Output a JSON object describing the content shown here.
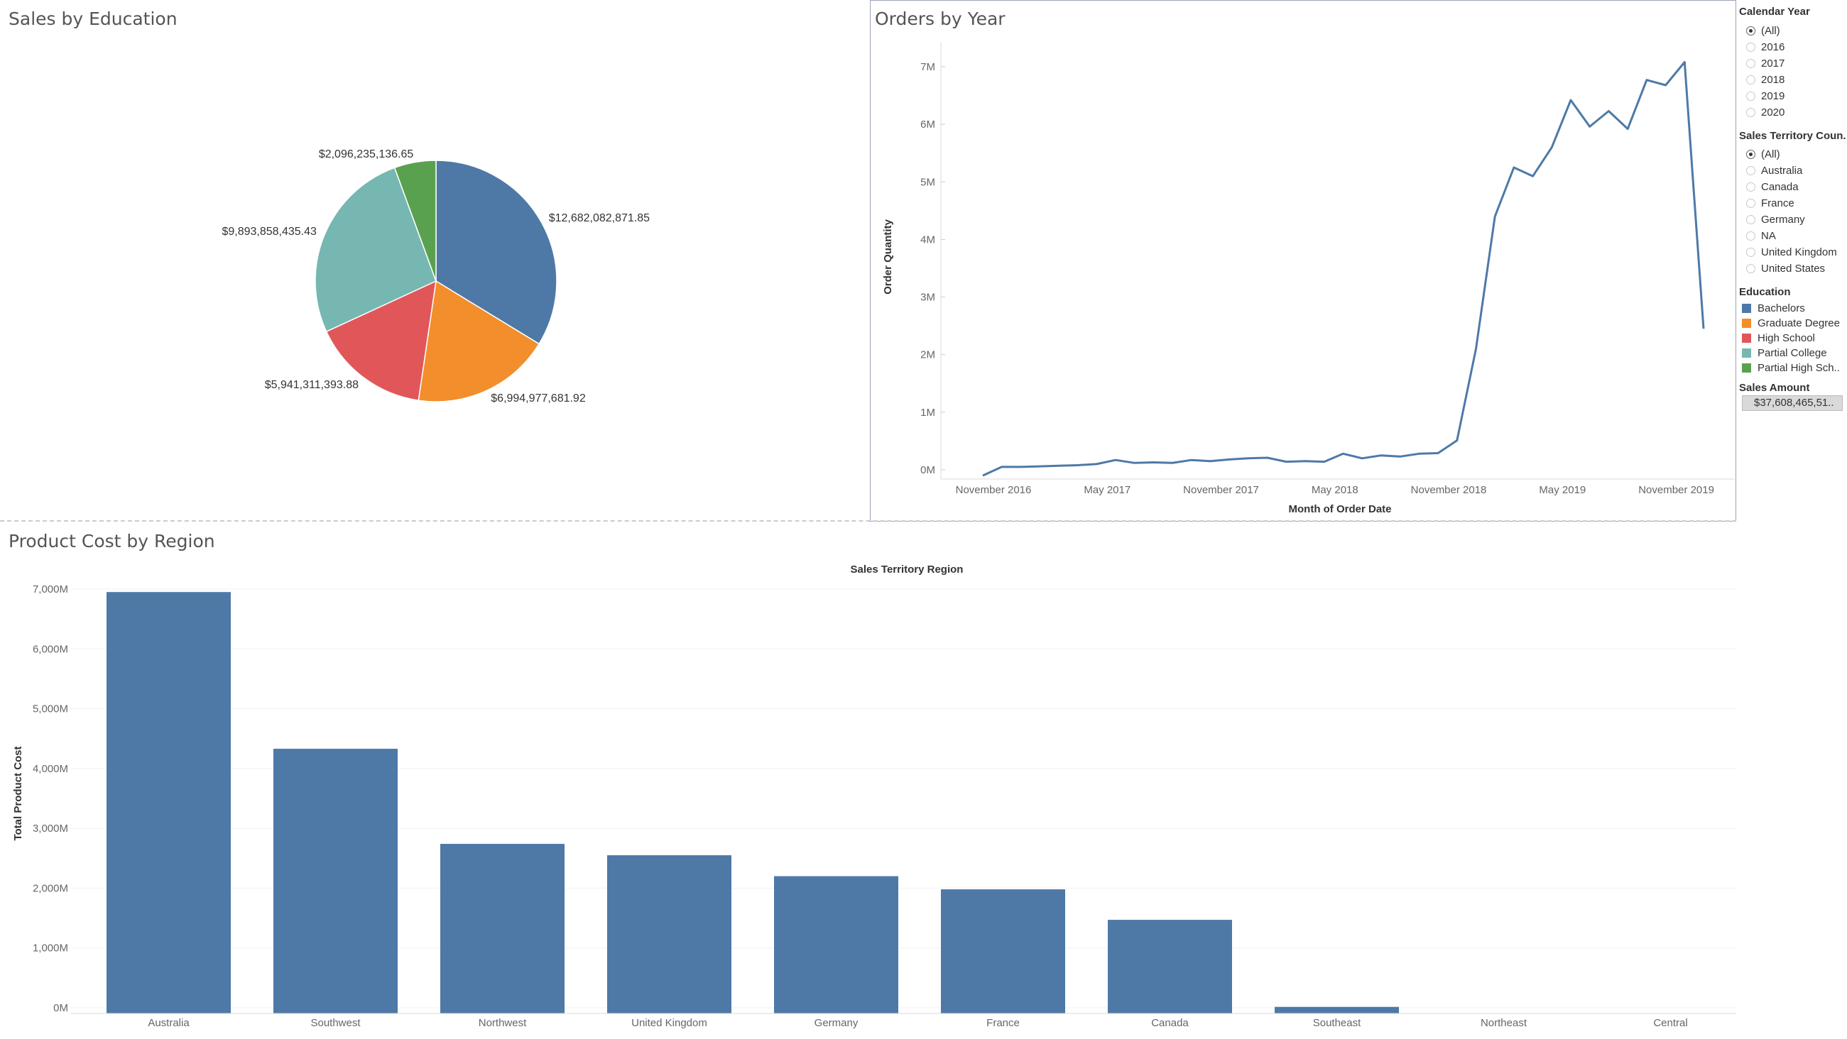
{
  "pie_panel": {
    "title": "Sales by Education"
  },
  "line_panel": {
    "title": "Orders by Year"
  },
  "bar_panel": {
    "title": "Product Cost by Region"
  },
  "filters": {
    "calendar_year": {
      "title": "Calendar Year",
      "options": [
        {
          "label": "(All)",
          "selected": true
        },
        {
          "label": "2016",
          "selected": false
        },
        {
          "label": "2017",
          "selected": false
        },
        {
          "label": "2018",
          "selected": false
        },
        {
          "label": "2019",
          "selected": false
        },
        {
          "label": "2020",
          "selected": false
        }
      ]
    },
    "territory_country": {
      "title": "Sales Territory Coun..",
      "options": [
        {
          "label": "(All)",
          "selected": true
        },
        {
          "label": "Australia",
          "selected": false
        },
        {
          "label": "Canada",
          "selected": false
        },
        {
          "label": "France",
          "selected": false
        },
        {
          "label": "Germany",
          "selected": false
        },
        {
          "label": "NA",
          "selected": false
        },
        {
          "label": "United Kingdom",
          "selected": false
        },
        {
          "label": "United States",
          "selected": false
        }
      ]
    },
    "education_legend": {
      "title": "Education",
      "items": [
        {
          "label": "Bachelors",
          "color": "#4e79a7"
        },
        {
          "label": "Graduate Degree",
          "color": "#f28e2b"
        },
        {
          "label": "High School",
          "color": "#e15759"
        },
        {
          "label": "Partial College",
          "color": "#76b7b2"
        },
        {
          "label": "Partial High Sch..",
          "color": "#59a14f"
        }
      ]
    },
    "sales_amount": {
      "title": "Sales Amount",
      "value": "$37,608,465,51.."
    }
  },
  "chart_data": [
    {
      "type": "pie",
      "title": "Sales by Education",
      "slices": [
        {
          "category": "Bachelors",
          "value": 12682082871.85,
          "label": "$12,682,082,871.85",
          "color": "#4e79a7"
        },
        {
          "category": "Graduate Degree",
          "value": 6994977681.92,
          "label": "$6,994,977,681.92",
          "color": "#f28e2b"
        },
        {
          "category": "High School",
          "value": 5941311393.88,
          "label": "$5,941,311,393.88",
          "color": "#e15759"
        },
        {
          "category": "Partial College",
          "value": 9893858435.43,
          "label": "$9,893,858,435.43",
          "color": "#76b7b2"
        },
        {
          "category": "Partial High School",
          "value": 2096235136.65,
          "label": "$2,096,235,136.65",
          "color": "#59a14f"
        }
      ]
    },
    {
      "type": "line",
      "title": "Orders by Year",
      "xlabel": "Month of Order Date",
      "ylabel": "Order Quantity",
      "x": [
        "2016-11",
        "2016-12",
        "2017-01",
        "2017-02",
        "2017-03",
        "2017-04",
        "2017-05",
        "2017-06",
        "2017-07",
        "2017-08",
        "2017-09",
        "2017-10",
        "2017-11",
        "2017-12",
        "2018-01",
        "2018-02",
        "2018-03",
        "2018-04",
        "2018-05",
        "2018-06",
        "2018-07",
        "2018-08",
        "2018-09",
        "2018-10",
        "2018-11",
        "2018-12",
        "2019-01",
        "2019-02",
        "2019-03",
        "2019-04",
        "2019-05",
        "2019-06",
        "2019-07",
        "2019-08",
        "2019-09",
        "2019-10",
        "2019-11",
        "2019-12",
        "2020-01"
      ],
      "y": [
        -100000,
        50000,
        50000,
        60000,
        70000,
        80000,
        100000,
        170000,
        120000,
        130000,
        120000,
        170000,
        150000,
        180000,
        200000,
        210000,
        140000,
        150000,
        140000,
        280000,
        200000,
        250000,
        230000,
        280000,
        290000,
        510000,
        2100000,
        4400000,
        5250000,
        5100000,
        5600000,
        6420000,
        5960000,
        6230000,
        5920000,
        6770000,
        6680000,
        7080000,
        2450000
      ],
      "ylim": [
        -100000,
        7000000
      ],
      "yticks": [
        "0M",
        "1M",
        "2M",
        "3M",
        "4M",
        "5M",
        "6M",
        "7M"
      ],
      "xticks": [
        "November 2016",
        "May 2017",
        "November 2017",
        "May 2018",
        "November 2018",
        "May 2019",
        "November 2019"
      ]
    },
    {
      "type": "bar",
      "title": "Product Cost by Region",
      "header": "Sales Territory Region",
      "ylabel": "Total Product Cost",
      "categories": [
        "Australia",
        "Southwest",
        "Northwest",
        "United Kingdom",
        "Germany",
        "France",
        "Canada",
        "Southeast",
        "Northeast",
        "Central"
      ],
      "values": [
        6950,
        4330,
        2740,
        2550,
        2200,
        1980,
        1470,
        15,
        0,
        0
      ],
      "ylim": [
        0,
        7000
      ],
      "yticks": [
        "0M",
        "1,000M",
        "2,000M",
        "3,000M",
        "4,000M",
        "5,000M",
        "6,000M",
        "7,000M"
      ],
      "color": "#4e79a7"
    }
  ]
}
